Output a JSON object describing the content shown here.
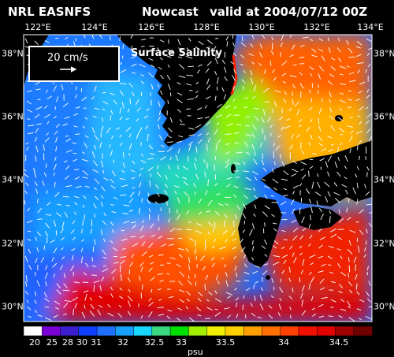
{
  "header": {
    "left": "NRL EASNFS",
    "center": "Nowcast",
    "right": "valid at 2004/07/12 00Z"
  },
  "map": {
    "field_title": "Surface Salinity",
    "vector_scale_label": "20 cm/s",
    "lon_ticks": [
      "122°E",
      "124°E",
      "126°E",
      "128°E",
      "130°E",
      "132°E",
      "134°E"
    ],
    "lat_ticks": [
      "38°N",
      "36°N",
      "34°N",
      "32°N",
      "30°N"
    ]
  },
  "colorbar": {
    "labels": [
      "20",
      "25",
      "28",
      "30",
      "31",
      "32",
      "32.5",
      "33",
      "33.5",
      "34",
      "34.5"
    ],
    "units": "psu",
    "colors": [
      "#ffffff",
      "#7a00d6",
      "#3b1fd0",
      "#1040ff",
      "#2070ff",
      "#18a0ff",
      "#18d8ff",
      "#3cd880",
      "#00e000",
      "#a0f000",
      "#f0f000",
      "#ffd000",
      "#ffa000",
      "#ff7000",
      "#ff4000",
      "#f01000",
      "#e00000",
      "#a00000",
      "#700000"
    ]
  }
}
